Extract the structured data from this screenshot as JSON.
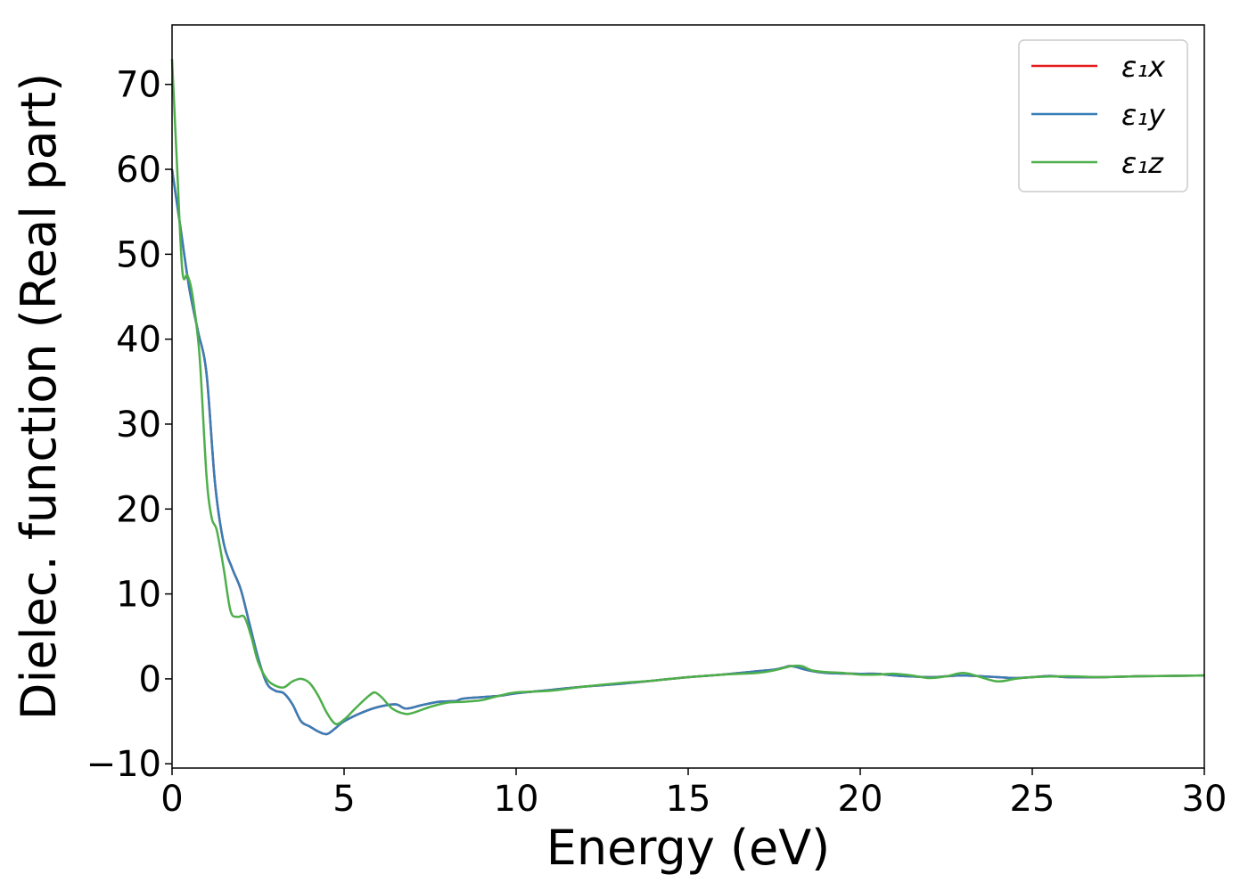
{
  "chart_data": {
    "type": "line",
    "xlabel": "Energy (eV)",
    "ylabel": "Dielec. function (Real part)",
    "xlim": [
      0,
      30
    ],
    "ylim": [
      -10.5,
      77
    ],
    "xticks": [
      0,
      5,
      10,
      15,
      20,
      25,
      30
    ],
    "xtick_labels": [
      "0",
      "5",
      "10",
      "15",
      "20",
      "25",
      "30"
    ],
    "yticks": [
      -10,
      0,
      10,
      20,
      30,
      40,
      50,
      60,
      70
    ],
    "ytick_labels": [
      "−10",
      "0",
      "10",
      "20",
      "30",
      "40",
      "50",
      "60",
      "70"
    ],
    "grid": false,
    "legend": "top-right",
    "series": [
      {
        "name": "ε₁x",
        "color": "#e41a1c",
        "points": [
          [
            0,
            60
          ],
          [
            0.25,
            53
          ],
          [
            0.5,
            46
          ],
          [
            0.75,
            41
          ],
          [
            1.0,
            36
          ],
          [
            1.25,
            23
          ],
          [
            1.5,
            16
          ],
          [
            1.75,
            13
          ],
          [
            2.0,
            10.5
          ],
          [
            2.25,
            6.5
          ],
          [
            2.5,
            2.5
          ],
          [
            2.75,
            -0.5
          ],
          [
            3.0,
            -1.4
          ],
          [
            3.25,
            -1.7
          ],
          [
            3.5,
            -3
          ],
          [
            3.75,
            -5
          ],
          [
            4.0,
            -5.6
          ],
          [
            4.25,
            -6.2
          ],
          [
            4.5,
            -6.5
          ],
          [
            4.75,
            -5.8
          ],
          [
            5.0,
            -5
          ],
          [
            5.5,
            -4
          ],
          [
            6.0,
            -3.3
          ],
          [
            6.5,
            -3
          ],
          [
            6.8,
            -3.5
          ],
          [
            7.25,
            -3.1
          ],
          [
            7.75,
            -2.7
          ],
          [
            8.25,
            -2.6
          ],
          [
            8.5,
            -2.3
          ],
          [
            9.5,
            -2.0
          ],
          [
            10,
            -1.7
          ],
          [
            11,
            -1.3
          ],
          [
            12,
            -0.9
          ],
          [
            13,
            -0.6
          ],
          [
            14,
            -0.2
          ],
          [
            15,
            0.2
          ],
          [
            16,
            0.5
          ],
          [
            17,
            0.9
          ],
          [
            17.5,
            1.1
          ],
          [
            17.75,
            1.3
          ],
          [
            18.0,
            1.5
          ],
          [
            18.5,
            1.0
          ],
          [
            19,
            0.7
          ],
          [
            20,
            0.6
          ],
          [
            20.5,
            0.6
          ],
          [
            21,
            0.4
          ],
          [
            22,
            0.2
          ],
          [
            22.5,
            0.3
          ],
          [
            23,
            0.4
          ],
          [
            24,
            0.2
          ],
          [
            24.5,
            0.1
          ],
          [
            25,
            0.2
          ],
          [
            25.5,
            0.35
          ],
          [
            26,
            0.2
          ],
          [
            27,
            0.2
          ],
          [
            28,
            0.3
          ],
          [
            30,
            0.4
          ]
        ]
      },
      {
        "name": "ε₁y",
        "color": "#377eb8",
        "points": [
          [
            0,
            60
          ],
          [
            0.25,
            53
          ],
          [
            0.5,
            46
          ],
          [
            0.75,
            41
          ],
          [
            1.0,
            36
          ],
          [
            1.25,
            23
          ],
          [
            1.5,
            16
          ],
          [
            1.75,
            13
          ],
          [
            2.0,
            10.5
          ],
          [
            2.25,
            6.5
          ],
          [
            2.5,
            2.5
          ],
          [
            2.75,
            -0.5
          ],
          [
            3.0,
            -1.4
          ],
          [
            3.25,
            -1.7
          ],
          [
            3.5,
            -3
          ],
          [
            3.75,
            -5
          ],
          [
            4.0,
            -5.6
          ],
          [
            4.25,
            -6.2
          ],
          [
            4.5,
            -6.5
          ],
          [
            4.75,
            -5.8
          ],
          [
            5.0,
            -5
          ],
          [
            5.5,
            -4
          ],
          [
            6.0,
            -3.3
          ],
          [
            6.5,
            -3
          ],
          [
            6.8,
            -3.5
          ],
          [
            7.25,
            -3.1
          ],
          [
            7.75,
            -2.7
          ],
          [
            8.25,
            -2.6
          ],
          [
            8.5,
            -2.3
          ],
          [
            9.5,
            -2.0
          ],
          [
            10,
            -1.7
          ],
          [
            11,
            -1.3
          ],
          [
            12,
            -0.9
          ],
          [
            13,
            -0.6
          ],
          [
            14,
            -0.2
          ],
          [
            15,
            0.2
          ],
          [
            16,
            0.5
          ],
          [
            17,
            0.9
          ],
          [
            17.5,
            1.1
          ],
          [
            17.75,
            1.3
          ],
          [
            18.0,
            1.5
          ],
          [
            18.5,
            1.0
          ],
          [
            19,
            0.7
          ],
          [
            20,
            0.6
          ],
          [
            20.5,
            0.6
          ],
          [
            21,
            0.4
          ],
          [
            22,
            0.2
          ],
          [
            22.5,
            0.3
          ],
          [
            23,
            0.4
          ],
          [
            24,
            0.2
          ],
          [
            24.5,
            0.1
          ],
          [
            25,
            0.2
          ],
          [
            25.5,
            0.35
          ],
          [
            26,
            0.2
          ],
          [
            27,
            0.2
          ],
          [
            28,
            0.3
          ],
          [
            30,
            0.4
          ]
        ]
      },
      {
        "name": "ε₁z",
        "color": "#4daf4a",
        "points": [
          [
            0,
            73
          ],
          [
            0.15,
            60
          ],
          [
            0.3,
            48
          ],
          [
            0.45,
            47.5
          ],
          [
            0.6,
            45
          ],
          [
            0.8,
            38
          ],
          [
            1.0,
            24
          ],
          [
            1.15,
            19
          ],
          [
            1.3,
            17.5
          ],
          [
            1.5,
            13
          ],
          [
            1.7,
            8
          ],
          [
            1.9,
            7.3
          ],
          [
            2.1,
            7.3
          ],
          [
            2.3,
            5
          ],
          [
            2.5,
            2
          ],
          [
            2.75,
            0
          ],
          [
            3.0,
            -0.8
          ],
          [
            3.25,
            -1
          ],
          [
            3.5,
            -0.3
          ],
          [
            3.75,
            0
          ],
          [
            4.0,
            -0.5
          ],
          [
            4.25,
            -2
          ],
          [
            4.5,
            -4
          ],
          [
            4.75,
            -5.3
          ],
          [
            5.0,
            -4.8
          ],
          [
            5.25,
            -3.8
          ],
          [
            5.5,
            -2.8
          ],
          [
            5.75,
            -1.9
          ],
          [
            5.9,
            -1.6
          ],
          [
            6.1,
            -2.2
          ],
          [
            6.4,
            -3.5
          ],
          [
            6.75,
            -4.1
          ],
          [
            7.0,
            -4.0
          ],
          [
            7.5,
            -3.3
          ],
          [
            8.0,
            -2.8
          ],
          [
            8.5,
            -2.7
          ],
          [
            9.0,
            -2.5
          ],
          [
            9.5,
            -2.0
          ],
          [
            10,
            -1.6
          ],
          [
            11,
            -1.4
          ],
          [
            12,
            -0.9
          ],
          [
            13,
            -0.5
          ],
          [
            14,
            -0.2
          ],
          [
            15,
            0.2
          ],
          [
            16,
            0.5
          ],
          [
            17,
            0.7
          ],
          [
            17.5,
            1.0
          ],
          [
            18.0,
            1.5
          ],
          [
            18.3,
            1.5
          ],
          [
            18.6,
            1.0
          ],
          [
            19,
            0.8
          ],
          [
            19.5,
            0.7
          ],
          [
            20,
            0.5
          ],
          [
            20.5,
            0.5
          ],
          [
            21,
            0.6
          ],
          [
            21.5,
            0.4
          ],
          [
            22,
            0.1
          ],
          [
            22.5,
            0.3
          ],
          [
            23,
            0.7
          ],
          [
            23.5,
            0.2
          ],
          [
            24,
            -0.3
          ],
          [
            24.5,
            0
          ],
          [
            25,
            0.2
          ],
          [
            26,
            0.3
          ],
          [
            27,
            0.2
          ],
          [
            28,
            0.3
          ],
          [
            30,
            0.4
          ]
        ]
      }
    ]
  }
}
